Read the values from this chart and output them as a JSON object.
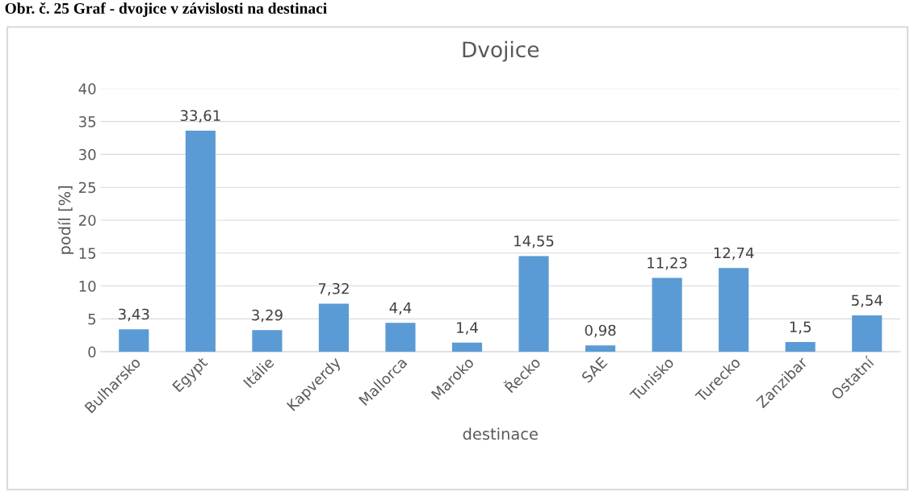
{
  "chart_data": {
    "type": "bar",
    "title": "Dvojice",
    "xlabel": "destinace",
    "ylabel": "podíl [%]",
    "annotations": [
      "Obr. č. 25 Graf - dvojice v závislosti na destinaci"
    ],
    "categories": [
      "Bulharsko",
      "Egypt",
      "Itálie",
      "Kapverdy",
      "Mallorca",
      "Maroko",
      "Řecko",
      "SAE",
      "Tunisko",
      "Turecko",
      "Zanzibar",
      "Ostatní"
    ],
    "values": [
      3.43,
      33.61,
      3.29,
      7.32,
      4.4,
      1.4,
      14.55,
      0.98,
      11.23,
      12.74,
      1.5,
      5.54
    ],
    "value_labels": [
      "3,43",
      "33,61",
      "3,29",
      "7,32",
      "4,4",
      "1,4",
      "14,55",
      "0,98",
      "11,23",
      "12,74",
      "1,5",
      "5,54"
    ],
    "color": "#5b9bd5",
    "ylim": [
      0,
      40
    ],
    "yticks": [
      0,
      5,
      10,
      15,
      20,
      25,
      30,
      35,
      40
    ],
    "grid": "y",
    "legend": false
  }
}
